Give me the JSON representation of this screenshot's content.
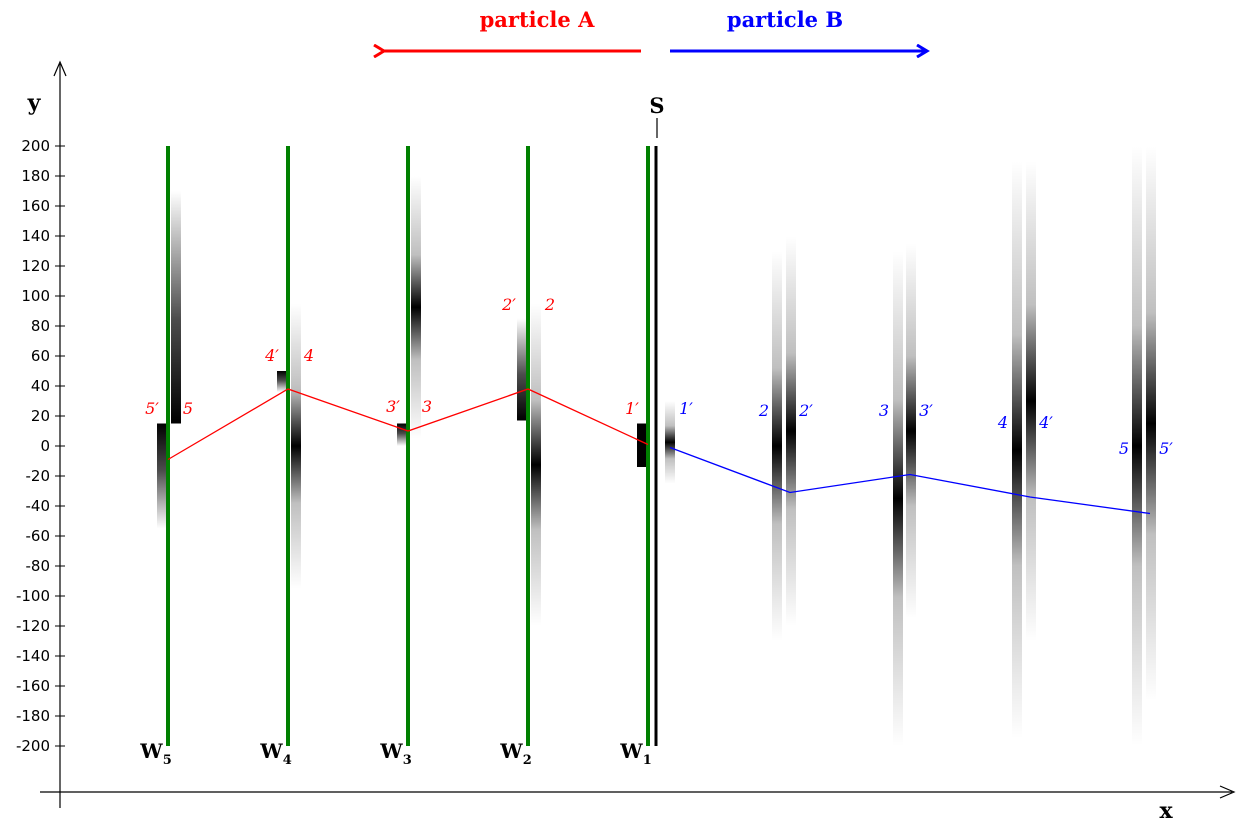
{
  "axes": {
    "x_label": "x",
    "y_label": "y",
    "y_ticks": [
      "200",
      "180",
      "160",
      "140",
      "120",
      "100",
      "80",
      "60",
      "40",
      "20",
      "0",
      "-20",
      "-40",
      "-60",
      "-80",
      "-100",
      "-120",
      "-140",
      "-160",
      "-180",
      "-200"
    ]
  },
  "header": {
    "particle_a": "particle A",
    "particle_b": "particle B"
  },
  "source_label": "S",
  "walls": [
    {
      "letter": "W",
      "sub": "1"
    },
    {
      "letter": "W",
      "sub": "2"
    },
    {
      "letter": "W",
      "sub": "3"
    },
    {
      "letter": "W",
      "sub": "4"
    },
    {
      "letter": "W",
      "sub": "5"
    }
  ],
  "a_labels": [
    {
      "primed": "1′",
      "plain": ""
    },
    {
      "primed": "2′",
      "plain": "2"
    },
    {
      "primed": "3′",
      "plain": "3"
    },
    {
      "primed": "4′",
      "plain": "4"
    },
    {
      "primed": "5′",
      "plain": "5"
    }
  ],
  "b_labels": [
    {
      "primed": "1′",
      "plain": ""
    },
    {
      "primed": "2′",
      "plain": "2"
    },
    {
      "primed": "3′",
      "plain": "3"
    },
    {
      "primed": "4′",
      "plain": "4"
    },
    {
      "primed": "5′",
      "plain": "5"
    }
  ],
  "trajectory_a_y": [
    1,
    38,
    10,
    38,
    -9
  ],
  "trajectory_b_y": [
    -1,
    -31,
    -19,
    -34,
    -45
  ],
  "colors": {
    "particle_a": "#ff0000",
    "particle_b": "#0000ff",
    "walls": "#008000",
    "axes": "#000000"
  }
}
